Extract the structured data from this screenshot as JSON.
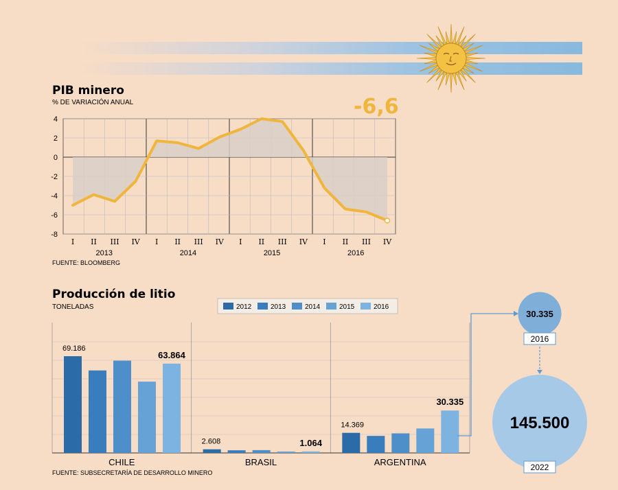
{
  "colors": {
    "background": "#f7dcc6",
    "line": "#f0b53c",
    "shade": "#d9cfc7",
    "sky_blue": "#87b9de",
    "sun": "#f3c244",
    "bar_colors": [
      "#2b6ca8",
      "#3a7dbd",
      "#4f8fc9",
      "#66a2d6",
      "#7db3e0"
    ],
    "bubble_small": "#7faed9",
    "bubble_large": "#a7c9e8"
  },
  "charts": {
    "pib": {
      "title": "PIB minero",
      "subtitle": "% DE VARIACIÓN ANUAL",
      "source": "FUENTE: BLOOMBERG",
      "highlight": "-6,6"
    },
    "litio": {
      "title": "Producción de litio",
      "subtitle": "TONELADAS",
      "source": "FUENTE: SUBSECRETARÍA DE DESARROLLO MINERO"
    }
  },
  "chart_data": [
    {
      "type": "line",
      "title": "PIB minero",
      "subtitle": "% DE VARIACIÓN ANUAL",
      "x_quarters": [
        "I",
        "II",
        "III",
        "IV",
        "I",
        "II",
        "III",
        "IV",
        "I",
        "II",
        "III",
        "IV",
        "I",
        "II",
        "III",
        "IV"
      ],
      "x_years": [
        "2013",
        "2014",
        "2015",
        "2016"
      ],
      "values": [
        -5.0,
        -3.9,
        -4.6,
        -2.5,
        1.7,
        1.5,
        0.9,
        2.1,
        2.9,
        4.0,
        3.7,
        0.7,
        -3.2,
        -5.4,
        -5.7,
        -6.6
      ],
      "ylim": [
        -8,
        4
      ],
      "yticks": [
        4,
        2,
        0,
        -2,
        -4,
        -6,
        -8
      ],
      "grid": true,
      "source": "FUENTE: BLOOMBERG"
    },
    {
      "type": "bar",
      "title": "Producción de litio",
      "subtitle": "TONELADAS",
      "categories": [
        "CHILE",
        "BRASIL",
        "ARGENTINA"
      ],
      "legend": [
        "2012",
        "2013",
        "2014",
        "2015",
        "2016"
      ],
      "legend_placement": "top",
      "series": [
        {
          "name": "2012",
          "values": [
            69186,
            2608,
            14369
          ]
        },
        {
          "name": "2013",
          "values": [
            59000,
            1900,
            12200
          ]
        },
        {
          "name": "2014",
          "values": [
            66000,
            2000,
            14000
          ]
        },
        {
          "name": "2015",
          "values": [
            51000,
            1000,
            17500
          ]
        },
        {
          "name": "2016",
          "values": [
            63864,
            1064,
            30335
          ]
        }
      ],
      "data_labels": [
        {
          "category": "CHILE",
          "series": "2012",
          "text": "69.186"
        },
        {
          "category": "CHILE",
          "series": "2016",
          "text": "63.864"
        },
        {
          "category": "BRASIL",
          "series": "2012",
          "text": "2.608"
        },
        {
          "category": "BRASIL",
          "series": "2016",
          "text": "1.064"
        },
        {
          "category": "ARGENTINA",
          "series": "2012",
          "text": "14.369"
        },
        {
          "category": "ARGENTINA",
          "series": "2016",
          "text": "30.335"
        }
      ],
      "ylim": [
        0,
        80000
      ],
      "grid": true,
      "source": "FUENTE: SUBSECRETARÍA DE DESARROLLO MINERO"
    },
    {
      "type": "bubble",
      "categories": [
        "2016",
        "2022"
      ],
      "values": [
        30335,
        145500
      ],
      "labels": [
        "30.335",
        "145.500"
      ]
    }
  ]
}
